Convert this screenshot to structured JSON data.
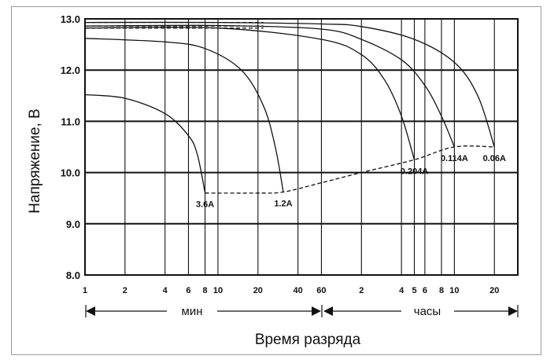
{
  "chart_data": {
    "type": "line",
    "ylabel": "Напряжение, В",
    "xlabel": "Время разряда",
    "ylim": [
      8.0,
      13.0
    ],
    "y_ticks": [
      "8.0",
      "9.0",
      "10.0",
      "11.0",
      "12.0",
      "13.0"
    ],
    "x_scale": "log",
    "x_unit_labels": {
      "minutes": "мин",
      "hours": "часы"
    },
    "x_tick_labels": [
      {
        "label": "1",
        "minutes": 1
      },
      {
        "label": "2",
        "minutes": 2
      },
      {
        "label": "4",
        "minutes": 4
      },
      {
        "label": "6",
        "minutes": 6
      },
      {
        "label": "8",
        "minutes": 8
      },
      {
        "label": "10",
        "minutes": 10
      },
      {
        "label": "20",
        "minutes": 20
      },
      {
        "label": "40",
        "minutes": 40
      },
      {
        "label": "60",
        "minutes": 60
      },
      {
        "label": "2",
        "minutes": 120
      },
      {
        "label": "4",
        "minutes": 240
      },
      {
        "label": "5",
        "minutes": 300
      },
      {
        "label": "6",
        "minutes": 360
      },
      {
        "label": "8",
        "minutes": 480
      },
      {
        "label": "10",
        "minutes": 600
      },
      {
        "label": "20",
        "minutes": 1200
      }
    ],
    "grid": true,
    "series": [
      {
        "name": "3.6A",
        "points": [
          [
            1,
            11.52
          ],
          [
            2,
            11.45
          ],
          [
            4,
            11.15
          ],
          [
            6,
            10.72
          ],
          [
            7,
            10.35
          ],
          [
            8,
            9.6
          ]
        ]
      },
      {
        "name": "1.2A",
        "points": [
          [
            1,
            12.62
          ],
          [
            4,
            12.55
          ],
          [
            8,
            12.42
          ],
          [
            15,
            12.0
          ],
          [
            22,
            11.3
          ],
          [
            27,
            10.5
          ],
          [
            31,
            9.62
          ]
        ]
      },
      {
        "name": "0.204A",
        "points": [
          [
            1,
            12.82
          ],
          [
            10,
            12.82
          ],
          [
            60,
            12.6
          ],
          [
            120,
            12.3
          ],
          [
            180,
            11.8
          ],
          [
            240,
            11.1
          ],
          [
            300,
            10.25
          ]
        ]
      },
      {
        "name": "0.114A",
        "points": [
          [
            1,
            12.86
          ],
          [
            10,
            12.87
          ],
          [
            60,
            12.8
          ],
          [
            120,
            12.6
          ],
          [
            240,
            12.2
          ],
          [
            360,
            11.7
          ],
          [
            480,
            11.1
          ],
          [
            600,
            10.5
          ]
        ]
      },
      {
        "name": "0.06A",
        "points": [
          [
            1,
            12.93
          ],
          [
            10,
            12.93
          ],
          [
            60,
            12.9
          ],
          [
            120,
            12.85
          ],
          [
            300,
            12.6
          ],
          [
            600,
            12.15
          ],
          [
            900,
            11.5
          ],
          [
            1200,
            10.5
          ]
        ]
      }
    ],
    "end_voltage_line": {
      "style": "dashed",
      "points": [
        [
          8,
          9.6
        ],
        [
          20,
          9.6
        ],
        [
          31,
          9.62
        ],
        [
          60,
          9.8
        ],
        [
          120,
          10.0
        ],
        [
          300,
          10.25
        ],
        [
          600,
          10.5
        ],
        [
          1200,
          10.5
        ]
      ]
    }
  }
}
